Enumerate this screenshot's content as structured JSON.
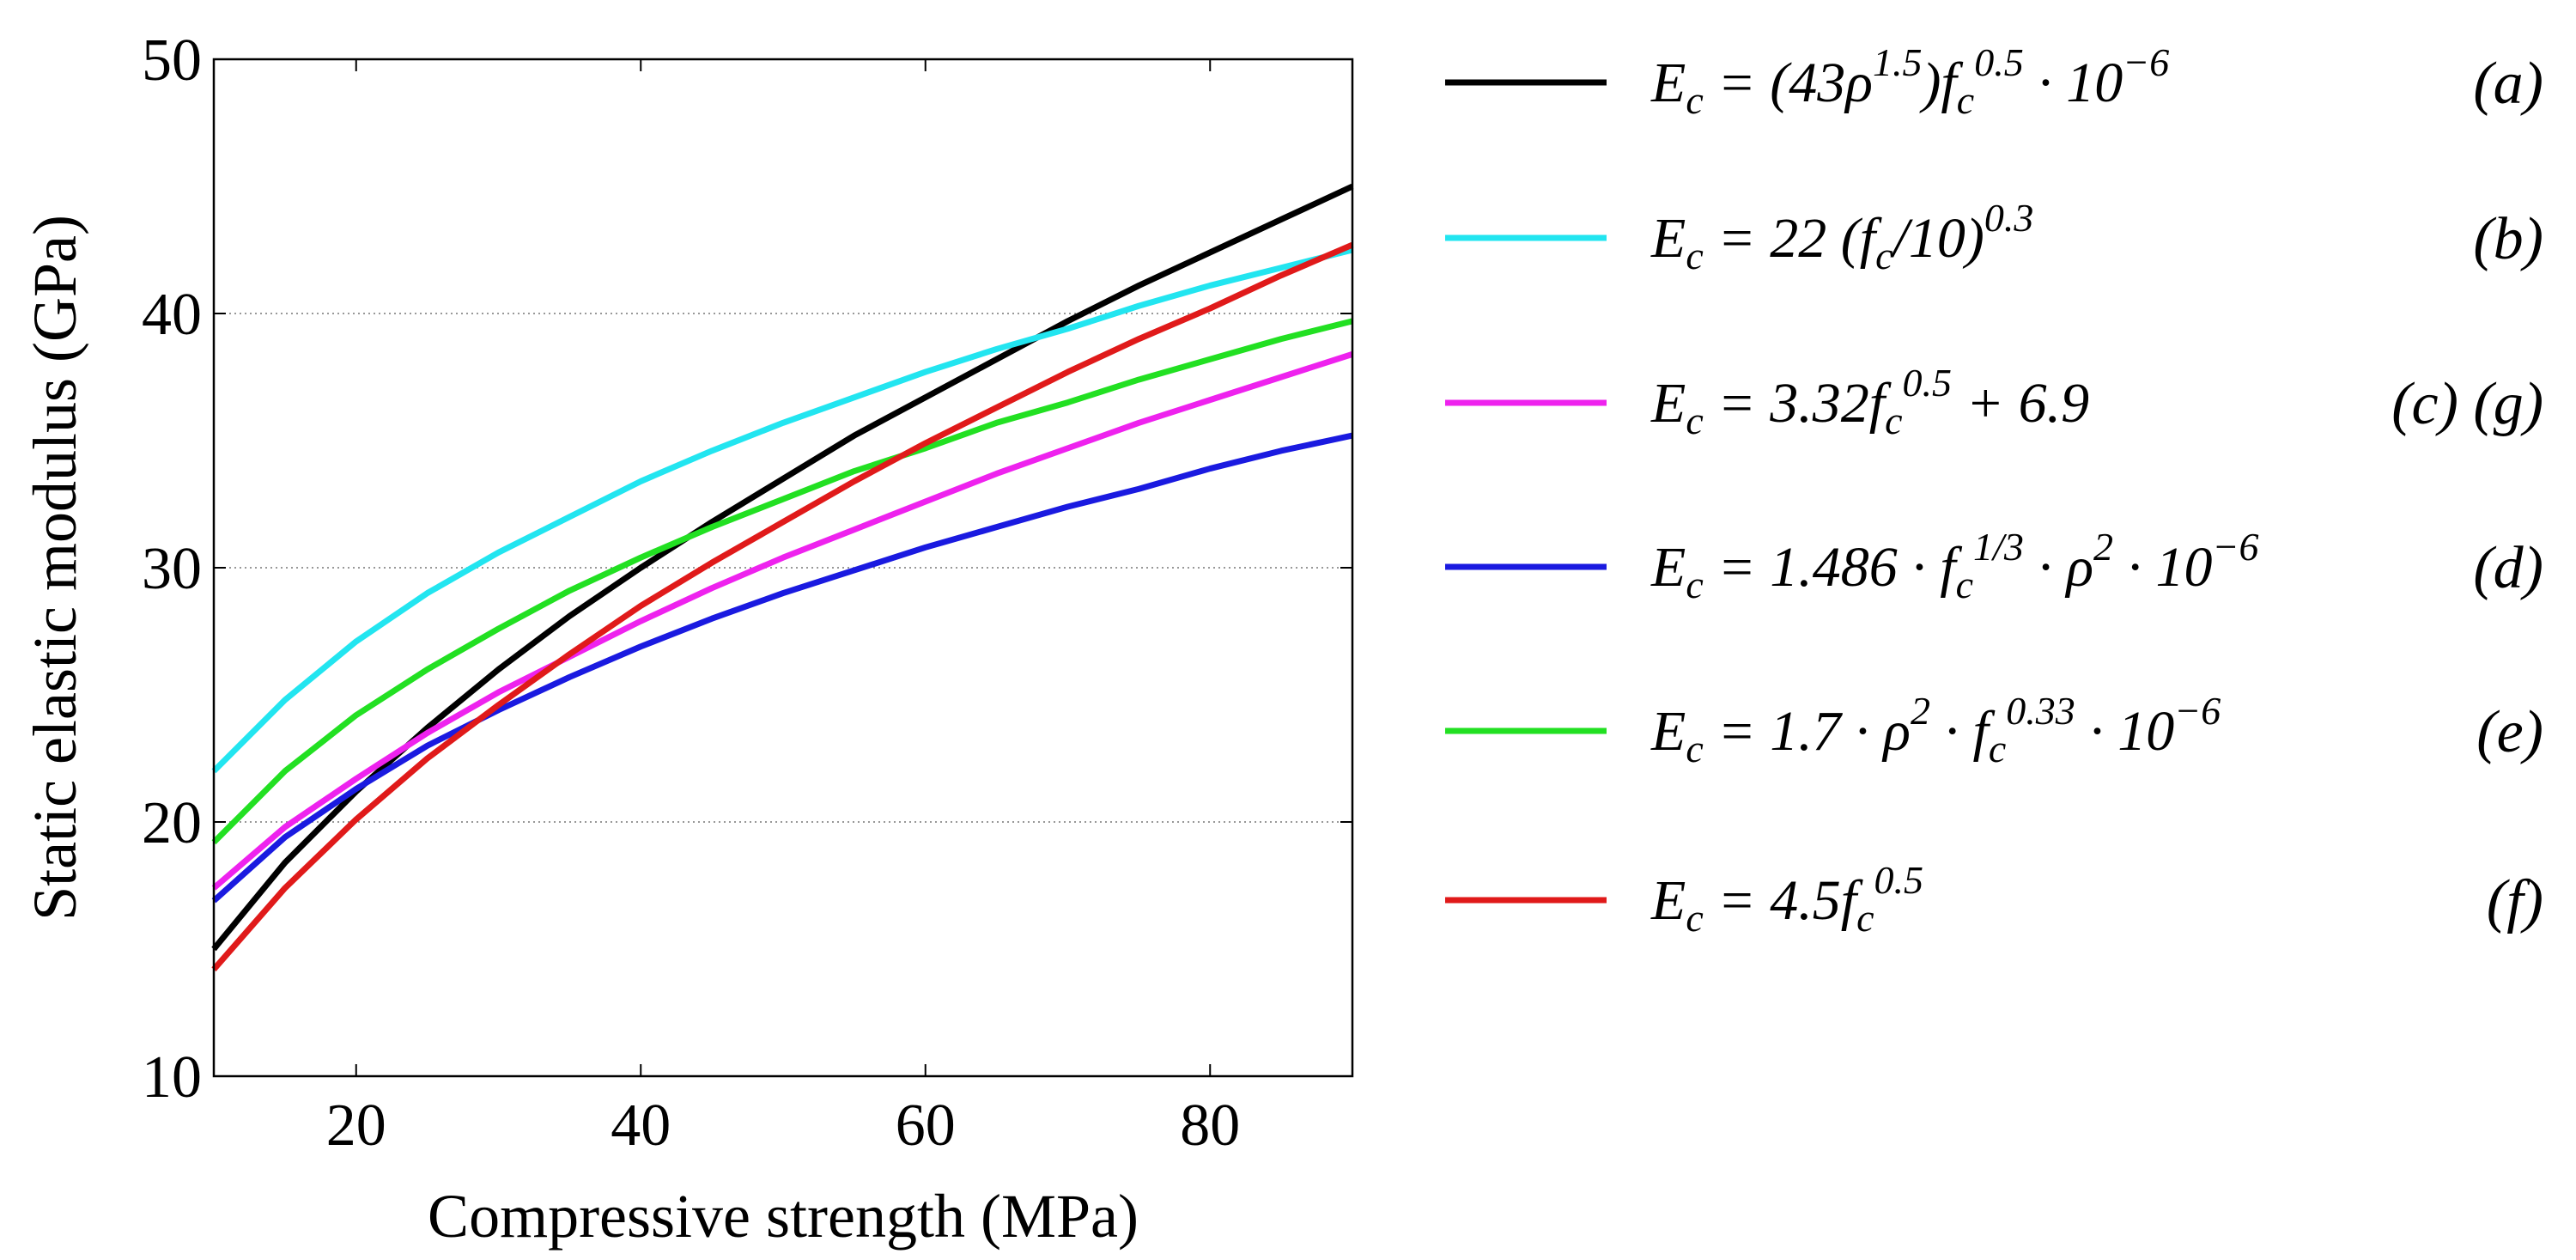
{
  "chart_data": {
    "type": "line",
    "xlabel": "Compressive strength (MPa)",
    "ylabel": "Static elastic modulus (GPa)",
    "x": [
      10,
      15,
      20,
      25,
      30,
      35,
      40,
      45,
      50,
      55,
      60,
      65,
      70,
      75,
      80,
      85,
      90
    ],
    "xlim": [
      10,
      90
    ],
    "xticks": [
      20,
      40,
      60,
      80
    ],
    "ylim": [
      10,
      50
    ],
    "yticks": [
      10,
      20,
      30,
      40,
      50
    ],
    "grid": true,
    "series": [
      {
        "name": [
          {
            "text": "E"
          },
          {
            "sub": "c"
          },
          {
            "text": " = (43ρ"
          },
          {
            "sup": "1.5"
          },
          {
            "text": ")f"
          },
          {
            "sub": "c"
          },
          {
            "sup": "0.5"
          },
          {
            "text": " · 10"
          },
          {
            "sup": "−6"
          }
        ],
        "tag": "(a)",
        "color": "#000000",
        "values": [
          15.0,
          18.4,
          21.2,
          23.7,
          26.0,
          28.1,
          30.0,
          31.8,
          33.5,
          35.2,
          36.7,
          38.2,
          39.7,
          41.1,
          42.4,
          43.7,
          45.0
        ]
      },
      {
        "name": [
          {
            "text": "E"
          },
          {
            "sub": "c"
          },
          {
            "text": " = 22 (f"
          },
          {
            "sub": "c"
          },
          {
            "text": "/10)"
          },
          {
            "sup": "0.3"
          }
        ],
        "tag": "(b)",
        "color": "#22e5f0",
        "values": [
          22.0,
          24.8,
          27.1,
          29.0,
          30.6,
          32.0,
          33.4,
          34.6,
          35.7,
          36.7,
          37.7,
          38.6,
          39.4,
          40.3,
          41.1,
          41.8,
          42.5
        ]
      },
      {
        "name": [
          {
            "text": "E"
          },
          {
            "sub": "c"
          },
          {
            "text": " = 3.32f"
          },
          {
            "sub": "c"
          },
          {
            "sup": "0.5"
          },
          {
            "text": " + 6.9"
          }
        ],
        "tag": "(c) (g)",
        "color": "#ee22ee",
        "values": [
          17.4,
          19.8,
          21.7,
          23.5,
          25.1,
          26.5,
          27.9,
          29.2,
          30.4,
          31.5,
          32.6,
          33.7,
          34.7,
          35.7,
          36.6,
          37.5,
          38.4
        ]
      },
      {
        "name": [
          {
            "text": "E"
          },
          {
            "sub": "c"
          },
          {
            "text": " = 1.486 · f"
          },
          {
            "sub": "c"
          },
          {
            "sup": "1/3"
          },
          {
            "text": " · ρ"
          },
          {
            "sup": "2"
          },
          {
            "text": " · 10"
          },
          {
            "sup": "−6"
          }
        ],
        "tag": "(d)",
        "color": "#1a1ae0",
        "values": [
          16.9,
          19.4,
          21.3,
          23.0,
          24.4,
          25.7,
          26.9,
          28.0,
          29.0,
          29.9,
          30.8,
          31.6,
          32.4,
          33.1,
          33.9,
          34.6,
          35.2
        ]
      },
      {
        "name": [
          {
            "text": "E"
          },
          {
            "sub": "c"
          },
          {
            "text": " = 1.7 · ρ"
          },
          {
            "sup": "2"
          },
          {
            "text": " · f"
          },
          {
            "sub": "c"
          },
          {
            "sup": "0.33"
          },
          {
            "text": " · 10"
          },
          {
            "sup": "−6"
          }
        ],
        "tag": "(e)",
        "color": "#22e022",
        "values": [
          19.2,
          22.0,
          24.2,
          26.0,
          27.6,
          29.1,
          30.4,
          31.6,
          32.7,
          33.8,
          34.7,
          35.7,
          36.5,
          37.4,
          38.2,
          39.0,
          39.7
        ]
      },
      {
        "name": [
          {
            "text": "E"
          },
          {
            "sub": "c"
          },
          {
            "text": " = 4.5f"
          },
          {
            "sub": "c"
          },
          {
            "sup": "0.5"
          }
        ],
        "tag": "(f)",
        "color": "#e01a1a",
        "values": [
          14.2,
          17.4,
          20.1,
          22.5,
          24.6,
          26.6,
          28.5,
          30.2,
          31.8,
          33.4,
          34.9,
          36.3,
          37.7,
          39.0,
          40.2,
          41.5,
          42.7
        ]
      }
    ]
  }
}
